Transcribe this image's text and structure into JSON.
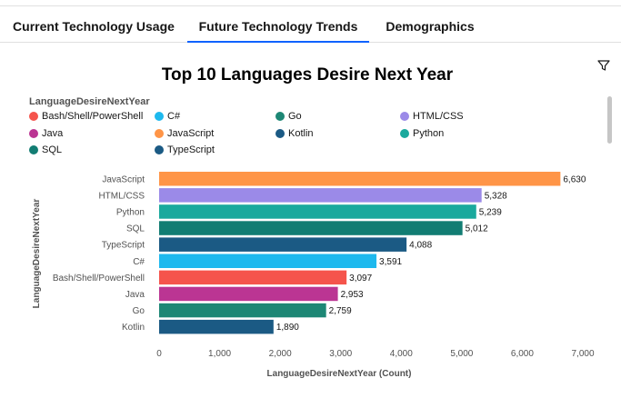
{
  "tabs": [
    {
      "label": "Current Technology Usage",
      "active": false
    },
    {
      "label": "Future Technology Trends",
      "active": true
    },
    {
      "label": "Demographics",
      "active": false
    }
  ],
  "icons": {
    "filter": "filter-icon"
  },
  "colors": {
    "tab_active": "#0f62fe",
    "JavaScript": "#ff9547",
    "HTML/CSS": "#9b8ae8",
    "Python": "#1aa99d",
    "SQL": "#127d73",
    "TypeScript": "#1b5a84",
    "C#": "#1eb9ee",
    "Bash/Shell/PowerShell": "#f5544c",
    "Java": "#bb3593",
    "Go": "#1d8775",
    "Kotlin": "#1b5a84"
  },
  "chart_data": {
    "type": "bar",
    "orientation": "horizontal",
    "title": "Top 10 Languages Desire Next Year",
    "xlabel": "LanguageDesireNextYear (Count)",
    "ylabel": "LanguageDesireNextYear",
    "legend_title": "LanguageDesireNextYear",
    "legend_position": "top-left",
    "legend": [
      "Bash/Shell/PowerShell",
      "C#",
      "Go",
      "HTML/CSS",
      "Java",
      "JavaScript",
      "Kotlin",
      "Python",
      "SQL",
      "TypeScript"
    ],
    "categories": [
      "JavaScript",
      "HTML/CSS",
      "Python",
      "SQL",
      "TypeScript",
      "C#",
      "Bash/Shell/PowerShell",
      "Java",
      "Go",
      "Kotlin"
    ],
    "values": [
      6630,
      5328,
      5239,
      5012,
      4088,
      3591,
      3097,
      2953,
      2759,
      1890
    ],
    "value_labels": [
      "6,630",
      "5,328",
      "5,239",
      "5,012",
      "4,088",
      "3,591",
      "3,097",
      "2,953",
      "2,759",
      "1,890"
    ],
    "xlim": [
      0,
      7000
    ],
    "xticks": [
      0,
      1000,
      2000,
      3000,
      4000,
      5000,
      6000,
      7000
    ],
    "xtick_labels": [
      "0",
      "1,000",
      "2,000",
      "3,000",
      "4,000",
      "5,000",
      "6,000",
      "7,000"
    ],
    "grid": false
  }
}
